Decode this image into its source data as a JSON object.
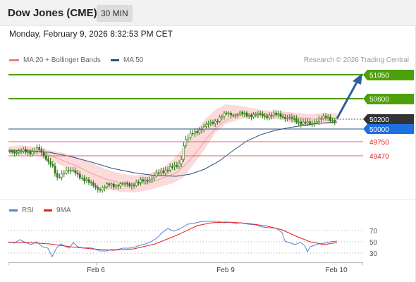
{
  "header": {
    "title": "Dow Jones (CME)",
    "timeframe": "30 MIN"
  },
  "datetime": "Monday, February 9, 2026 8:32:53 PM CET",
  "legend": {
    "main": [
      {
        "label": "MA 20 + Bollinger Bands",
        "color": "#f08080"
      },
      {
        "label": "MA 50",
        "color": "#2e4f7f"
      }
    ],
    "rsi": [
      {
        "label": "RSI",
        "color": "#5b7fd6"
      },
      {
        "label": "9MA",
        "color": "#e02020"
      }
    ]
  },
  "credit": "Research © 2026 Trading Central",
  "colors": {
    "green": "#4ea00a",
    "red_line": "#e06060",
    "blue_line": "#2e4f7f",
    "current_bg": "#333333",
    "pivot_bg": "#1f6fe0",
    "arrow": "#2e5f9f",
    "band": "#fbd7d7",
    "candle": "#3a8a1a"
  },
  "levels": [
    {
      "label": "51050",
      "value": 51050,
      "kind": "resistance",
      "style": "badge-green"
    },
    {
      "label": "50600",
      "value": 50600,
      "kind": "resistance",
      "style": "badge-green"
    },
    {
      "label": "50200",
      "value": 50200,
      "kind": "current",
      "style": "badge-dark"
    },
    {
      "label": "50000",
      "value": 50000,
      "kind": "pivot",
      "style": "badge-blue"
    },
    {
      "label": "49750",
      "value": 49750,
      "kind": "support",
      "style": "text-red"
    },
    {
      "label": "49470",
      "value": 49470,
      "kind": "support",
      "style": "text-red"
    }
  ],
  "rsi_ticks": [
    "70",
    "50",
    "30"
  ],
  "x_ticks": [
    "Feb 6",
    "Feb 9",
    "Feb 10"
  ]
}
